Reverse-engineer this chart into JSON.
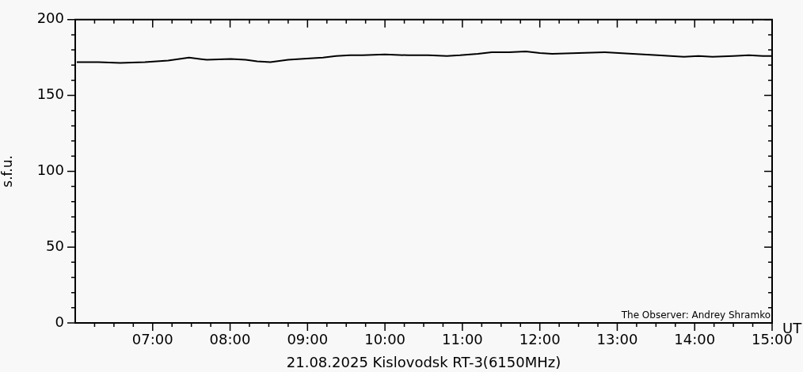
{
  "chart_data": {
    "type": "line",
    "xlabel": "21.08.2025 Kislovodsk RT-3(6150MHz)",
    "ylabel": "s.f.u.",
    "annotations": [
      "The Observer: Andrey Shramko",
      "UT"
    ],
    "xlim": [
      6.0,
      15.0
    ],
    "ylim": [
      0,
      200
    ],
    "xticks": [
      {
        "value": 6.25,
        "label": null
      },
      {
        "value": 6.5,
        "label": null
      },
      {
        "value": 6.75,
        "label": null
      },
      {
        "value": 7,
        "label": "07:00"
      },
      {
        "value": 7.25,
        "label": null
      },
      {
        "value": 7.5,
        "label": null
      },
      {
        "value": 7.75,
        "label": null
      },
      {
        "value": 8,
        "label": "08:00"
      },
      {
        "value": 8.25,
        "label": null
      },
      {
        "value": 8.5,
        "label": null
      },
      {
        "value": 8.75,
        "label": null
      },
      {
        "value": 9,
        "label": "09:00"
      },
      {
        "value": 9.25,
        "label": null
      },
      {
        "value": 9.5,
        "label": null
      },
      {
        "value": 9.75,
        "label": null
      },
      {
        "value": 10,
        "label": "10:00"
      },
      {
        "value": 10.25,
        "label": null
      },
      {
        "value": 10.5,
        "label": null
      },
      {
        "value": 10.75,
        "label": null
      },
      {
        "value": 11,
        "label": "11:00"
      },
      {
        "value": 11.25,
        "label": null
      },
      {
        "value": 11.5,
        "label": null
      },
      {
        "value": 11.75,
        "label": null
      },
      {
        "value": 12,
        "label": "12:00"
      },
      {
        "value": 12.25,
        "label": null
      },
      {
        "value": 12.5,
        "label": null
      },
      {
        "value": 12.75,
        "label": null
      },
      {
        "value": 13,
        "label": "13:00"
      },
      {
        "value": 13.25,
        "label": null
      },
      {
        "value": 13.5,
        "label": null
      },
      {
        "value": 13.75,
        "label": null
      },
      {
        "value": 14,
        "label": "14:00"
      },
      {
        "value": 14.25,
        "label": null
      },
      {
        "value": 14.5,
        "label": null
      },
      {
        "value": 14.75,
        "label": null
      },
      {
        "value": 15,
        "label": "15:00"
      }
    ],
    "yticks": [
      0,
      {
        "value": 10,
        "label": null
      },
      {
        "value": 20,
        "label": null
      },
      {
        "value": 30,
        "label": null
      },
      {
        "value": 40,
        "label": null
      },
      50,
      {
        "value": 60,
        "label": null
      },
      {
        "value": 70,
        "label": null
      },
      {
        "value": 80,
        "label": null
      },
      {
        "value": 90,
        "label": null
      },
      100,
      {
        "value": 110,
        "label": null
      },
      {
        "value": 120,
        "label": null
      },
      {
        "value": 130,
        "label": null
      },
      {
        "value": 140,
        "label": null
      },
      150,
      {
        "value": 160,
        "label": null
      },
      {
        "value": 170,
        "label": null
      },
      {
        "value": 180,
        "label": null
      },
      {
        "value": 190,
        "label": null
      },
      200
    ],
    "grid": false,
    "legend": false,
    "marker": "none",
    "line_style": "solid",
    "series": [
      {
        "color": "#000000",
        "x": [
          6.02,
          6.3,
          6.58,
          6.9,
          7.2,
          7.47,
          7.7,
          8.01,
          8.2,
          8.35,
          8.52,
          8.75,
          9.03,
          9.2,
          9.37,
          9.55,
          9.71,
          10.0,
          10.3,
          10.56,
          10.8,
          10.97,
          11.2,
          11.38,
          11.6,
          11.82,
          12.0,
          12.16,
          12.5,
          12.84,
          13.2,
          13.52,
          13.86,
          14.05,
          14.23,
          14.5,
          14.7,
          14.88,
          15.0
        ],
        "values": [
          172,
          172,
          171.5,
          172,
          173,
          175,
          173.5,
          174,
          173.5,
          172.5,
          172,
          173.5,
          174.5,
          175,
          176,
          176.5,
          176.5,
          177,
          176.5,
          176.5,
          176,
          176.5,
          177.5,
          178.5,
          178.5,
          179,
          178,
          177.5,
          178,
          178.5,
          177.5,
          176.5,
          175.5,
          176,
          175.5,
          176,
          176.5,
          176,
          176
        ]
      }
    ]
  }
}
